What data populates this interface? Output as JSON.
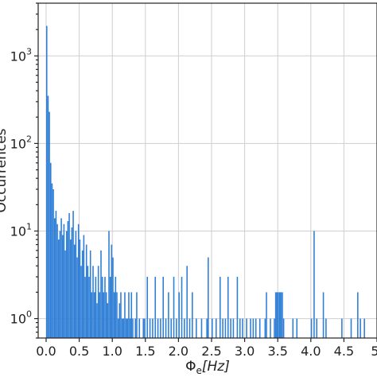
{
  "chart_data": {
    "type": "bar",
    "xlabel_main": "Φ",
    "xlabel_sub": "e",
    "xlabel_unit": "[Hz]",
    "ylabel": "Occurrences",
    "y_scale": "log",
    "xlim": [
      -0.12,
      5.0
    ],
    "ylim": [
      0.6,
      4000
    ],
    "grid": true,
    "x_ticks": [
      {
        "value": 0.0,
        "label": "0.0"
      },
      {
        "value": 0.5,
        "label": "0.5"
      },
      {
        "value": 1.0,
        "label": "1.0"
      },
      {
        "value": 1.5,
        "label": "1.5"
      },
      {
        "value": 2.0,
        "label": "2.0"
      },
      {
        "value": 2.5,
        "label": "2.5"
      },
      {
        "value": 3.0,
        "label": "3.0"
      },
      {
        "value": 3.5,
        "label": "3.5"
      },
      {
        "value": 4.0,
        "label": "4.0"
      },
      {
        "value": 4.5,
        "label": "4.5"
      },
      {
        "value": 5.0,
        "label": "5."
      }
    ],
    "y_ticks": [
      {
        "value": 1,
        "base": "10",
        "exp": "0"
      },
      {
        "value": 10,
        "base": "10",
        "exp": "1"
      },
      {
        "value": 100,
        "base": "10",
        "exp": "2"
      },
      {
        "value": 1000,
        "base": "10",
        "exp": "3"
      }
    ],
    "bar_color": "#2f7fd6",
    "bin_width": 0.02,
    "bins": [
      [
        0.01,
        2200
      ],
      [
        0.03,
        350
      ],
      [
        0.05,
        230
      ],
      [
        0.07,
        60
      ],
      [
        0.09,
        35
      ],
      [
        0.11,
        30
      ],
      [
        0.13,
        14
      ],
      [
        0.15,
        17
      ],
      [
        0.17,
        12
      ],
      [
        0.19,
        8
      ],
      [
        0.21,
        10
      ],
      [
        0.23,
        14
      ],
      [
        0.25,
        9
      ],
      [
        0.27,
        12
      ],
      [
        0.29,
        6
      ],
      [
        0.31,
        10
      ],
      [
        0.33,
        13
      ],
      [
        0.35,
        16
      ],
      [
        0.37,
        8
      ],
      [
        0.39,
        11
      ],
      [
        0.41,
        17
      ],
      [
        0.43,
        7
      ],
      [
        0.45,
        10
      ],
      [
        0.47,
        5
      ],
      [
        0.49,
        12
      ],
      [
        0.51,
        8
      ],
      [
        0.53,
        4
      ],
      [
        0.55,
        6
      ],
      [
        0.57,
        9
      ],
      [
        0.59,
        3
      ],
      [
        0.61,
        7
      ],
      [
        0.63,
        4
      ],
      [
        0.65,
        3
      ],
      [
        0.67,
        6
      ],
      [
        0.69,
        2
      ],
      [
        0.71,
        4
      ],
      [
        0.73,
        2
      ],
      [
        0.75,
        3
      ],
      [
        0.77,
        1.5
      ],
      [
        0.79,
        4
      ],
      [
        0.81,
        2
      ],
      [
        0.83,
        6
      ],
      [
        0.85,
        3
      ],
      [
        0.87,
        2
      ],
      [
        0.89,
        3
      ],
      [
        0.91,
        2
      ],
      [
        0.93,
        1.5
      ],
      [
        0.95,
        10
      ],
      [
        0.97,
        3
      ],
      [
        0.99,
        7
      ],
      [
        1.01,
        5
      ],
      [
        1.03,
        2
      ],
      [
        1.05,
        3
      ],
      [
        1.07,
        2
      ],
      [
        1.09,
        1
      ],
      [
        1.11,
        1.5
      ],
      [
        1.13,
        2
      ],
      [
        1.15,
        1
      ],
      [
        1.17,
        1
      ],
      [
        1.19,
        2
      ],
      [
        1.21,
        1
      ],
      [
        1.23,
        1
      ],
      [
        1.25,
        2
      ],
      [
        1.27,
        1
      ],
      [
        1.29,
        2
      ],
      [
        1.31,
        1
      ],
      [
        1.35,
        1
      ],
      [
        1.37,
        2
      ],
      [
        1.41,
        1
      ],
      [
        1.47,
        1
      ],
      [
        1.49,
        1
      ],
      [
        1.53,
        3
      ],
      [
        1.57,
        1
      ],
      [
        1.61,
        1
      ],
      [
        1.65,
        3
      ],
      [
        1.69,
        1
      ],
      [
        1.73,
        1
      ],
      [
        1.77,
        3
      ],
      [
        1.81,
        1
      ],
      [
        1.85,
        2
      ],
      [
        1.89,
        1
      ],
      [
        1.93,
        3
      ],
      [
        1.97,
        1
      ],
      [
        2.01,
        2
      ],
      [
        2.05,
        3
      ],
      [
        2.09,
        1
      ],
      [
        2.13,
        4
      ],
      [
        2.17,
        1
      ],
      [
        2.21,
        2
      ],
      [
        2.27,
        1
      ],
      [
        2.35,
        1
      ],
      [
        2.43,
        1
      ],
      [
        2.45,
        5
      ],
      [
        2.51,
        1
      ],
      [
        2.57,
        1
      ],
      [
        2.63,
        3
      ],
      [
        2.67,
        1
      ],
      [
        2.71,
        1
      ],
      [
        2.75,
        3
      ],
      [
        2.79,
        1
      ],
      [
        2.83,
        1
      ],
      [
        2.89,
        3
      ],
      [
        2.93,
        1
      ],
      [
        2.97,
        1
      ],
      [
        3.03,
        1
      ],
      [
        3.09,
        1
      ],
      [
        3.13,
        1
      ],
      [
        3.17,
        1
      ],
      [
        3.23,
        1
      ],
      [
        3.31,
        1
      ],
      [
        3.33,
        2
      ],
      [
        3.39,
        1
      ],
      [
        3.45,
        1
      ],
      [
        3.47,
        2
      ],
      [
        3.49,
        2
      ],
      [
        3.51,
        2
      ],
      [
        3.53,
        2
      ],
      [
        3.55,
        2
      ],
      [
        3.57,
        2
      ],
      [
        3.59,
        1
      ],
      [
        3.73,
        1
      ],
      [
        3.79,
        1
      ],
      [
        4.01,
        1
      ],
      [
        4.05,
        10
      ],
      [
        4.09,
        1
      ],
      [
        4.19,
        2
      ],
      [
        4.23,
        1
      ],
      [
        4.47,
        1
      ],
      [
        4.61,
        1
      ],
      [
        4.71,
        2
      ],
      [
        4.75,
        1
      ],
      [
        4.81,
        1
      ]
    ]
  }
}
